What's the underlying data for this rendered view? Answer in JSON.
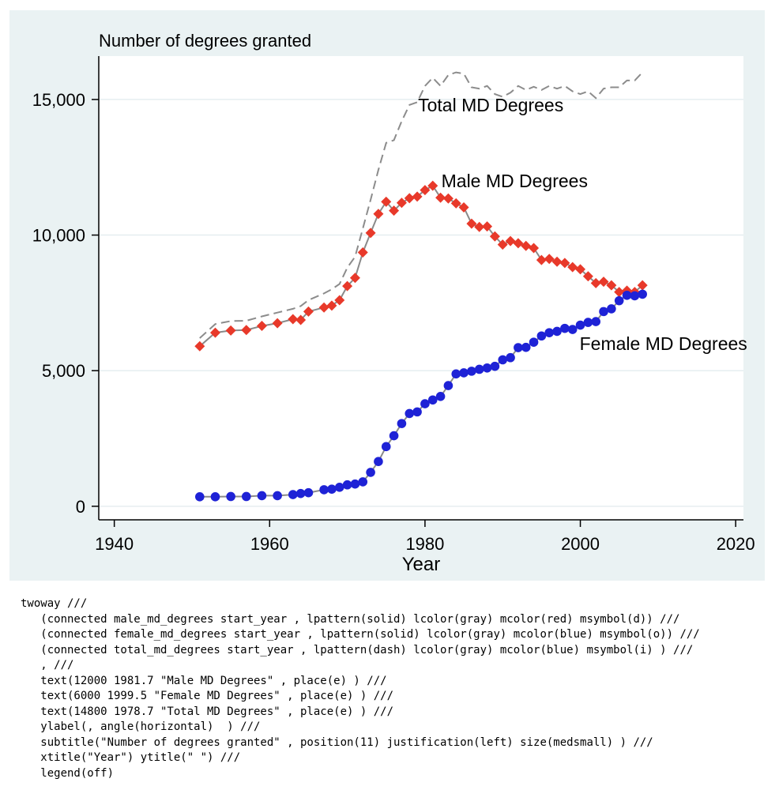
{
  "chart_data": {
    "type": "line",
    "subtitle": "Number of degrees granted",
    "xlabel": "Year",
    "ylabel": " ",
    "xlim": [
      1938,
      2021
    ],
    "ylim": [
      -500,
      16600
    ],
    "xticks": [
      1940,
      1960,
      1980,
      2000,
      2020
    ],
    "xtick_labels": [
      "1940",
      "1960",
      "1980",
      "2000",
      "2020"
    ],
    "yticks": [
      0,
      5000,
      10000,
      15000
    ],
    "ytick_labels": [
      "0",
      "5,000",
      "10,000",
      "15,000"
    ],
    "grid": "horizontal",
    "legend": "off",
    "x": [
      1951,
      1953,
      1955,
      1957,
      1959,
      1961,
      1963,
      1964,
      1965,
      1967,
      1968,
      1969,
      1970,
      1971,
      1972,
      1973,
      1974,
      1975,
      1976,
      1977,
      1978,
      1979,
      1980,
      1981,
      1982,
      1983,
      1984,
      1985,
      1986,
      1987,
      1988,
      1989,
      1990,
      1991,
      1992,
      1993,
      1994,
      1995,
      1996,
      1997,
      1998,
      1999,
      2000,
      2001,
      2002,
      2003,
      2004,
      2005,
      2006,
      2007,
      2008
    ],
    "series": [
      {
        "name": "Male MD Degrees",
        "color": "#e8392a",
        "marker": "diamond",
        "line": "solid",
        "values": [
          5900,
          6400,
          6480,
          6500,
          6650,
          6750,
          6900,
          6870,
          7180,
          7330,
          7400,
          7600,
          8120,
          8420,
          9360,
          10080,
          10780,
          11230,
          10900,
          11190,
          11360,
          11420,
          11660,
          11820,
          11380,
          11350,
          11170,
          11020,
          10420,
          10300,
          10320,
          9950,
          9650,
          9780,
          9700,
          9600,
          9520,
          9080,
          9120,
          9020,
          8970,
          8820,
          8740,
          8480,
          8230,
          8280,
          8150,
          7900,
          7950,
          7900,
          8150
        ]
      },
      {
        "name": "Female MD Degrees",
        "color": "#1e22d6",
        "marker": "circle",
        "line": "solid",
        "values": [
          350,
          350,
          360,
          360,
          390,
          390,
          430,
          470,
          500,
          610,
          630,
          700,
          790,
          820,
          900,
          1250,
          1650,
          2200,
          2600,
          3050,
          3420,
          3480,
          3780,
          3920,
          4050,
          4450,
          4880,
          4920,
          4980,
          5050,
          5100,
          5160,
          5400,
          5480,
          5850,
          5860,
          6050,
          6280,
          6400,
          6450,
          6560,
          6520,
          6680,
          6780,
          6810,
          7180,
          7280,
          7580,
          7780,
          7760,
          7820
        ]
      },
      {
        "name": "Total MD Degrees",
        "color": "#8a8a8a",
        "marker": "none",
        "line": "dash",
        "values": [
          6200,
          6720,
          6830,
          6840,
          7000,
          7140,
          7280,
          7380,
          7600,
          7850,
          8000,
          8200,
          8800,
          9200,
          10250,
          11300,
          12400,
          13400,
          13500,
          14200,
          14800,
          14900,
          15500,
          15800,
          15500,
          15900,
          16000,
          15950,
          15450,
          15400,
          15500,
          15200,
          15100,
          15250,
          15500,
          15350,
          15470,
          15350,
          15500,
          15400,
          15500,
          15300,
          15200,
          15300,
          15050,
          15400,
          15450,
          15450,
          15700,
          15700,
          16000
        ]
      }
    ],
    "annotations": [
      {
        "text": "Male MD Degrees",
        "x": 1981.7,
        "y": 12000,
        "place": "e"
      },
      {
        "text": "Female MD Degrees",
        "x": 1999.5,
        "y": 6000,
        "place": "e"
      },
      {
        "text": "Total MD Degrees",
        "x": 1978.7,
        "y": 14800,
        "place": "e"
      }
    ]
  },
  "code_lines": [
    "twoway ///",
    "   (connected male_md_degrees start_year , lpattern(solid) lcolor(gray) mcolor(red) msymbol(d)) ///",
    "   (connected female_md_degrees start_year , lpattern(solid) lcolor(gray) mcolor(blue) msymbol(o)) ///",
    "   (connected total_md_degrees start_year , lpattern(dash) lcolor(gray) mcolor(blue) msymbol(i) ) ///",
    "   , ///",
    "   text(12000 1981.7 \"Male MD Degrees\" , place(e) ) ///",
    "   text(6000 1999.5 \"Female MD Degrees\" , place(e) ) ///",
    "   text(14800 1978.7 \"Total MD Degrees\" , place(e) ) ///",
    "   ylabel(, angle(horizontal)  ) ///",
    "   subtitle(\"Number of degrees granted\" , position(11) justification(left) size(medsmall) ) ///",
    "   xtitle(\"Year\") ytitle(\" \") ///",
    "   legend(off)"
  ]
}
